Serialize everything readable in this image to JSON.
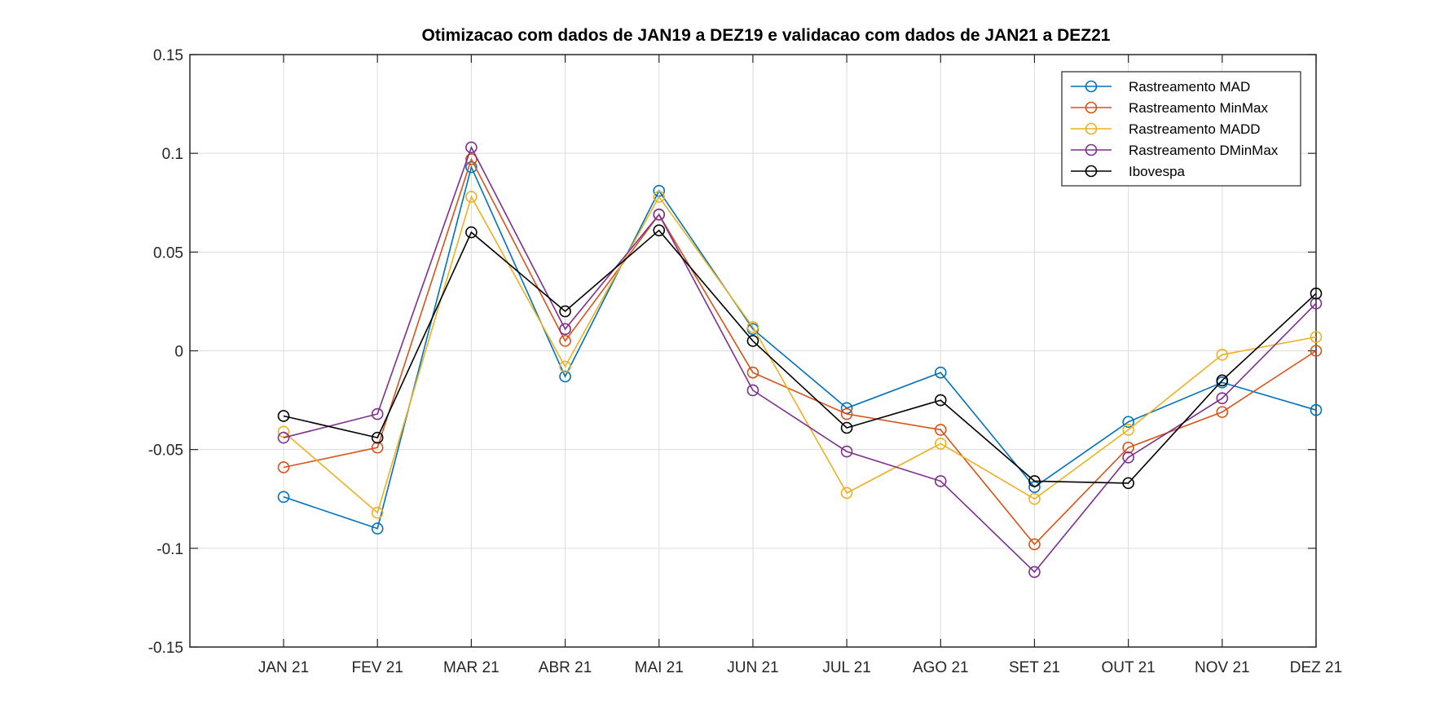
{
  "chart_data": {
    "type": "line",
    "title": "Otimizacao com dados de JAN19 a DEZ19 e validacao com dados de JAN21 a DEZ21",
    "xlabel": "",
    "ylabel": "",
    "categories": [
      "JAN 21",
      "FEV 21",
      "MAR 21",
      "ABR 21",
      "MAI 21",
      "JUN 21",
      "JUL 21",
      "AGO 21",
      "SET 21",
      "OUT 21",
      "NOV 21",
      "DEZ 21"
    ],
    "ylim": [
      -0.15,
      0.15
    ],
    "yticks": [
      "0.15",
      "0.1",
      "0.05",
      "0",
      "-0.05",
      "-0.1",
      "-0.15"
    ],
    "ytick_values": [
      0.15,
      0.1,
      0.05,
      0,
      -0.05,
      -0.1,
      -0.15
    ],
    "grid": true,
    "legend_position": "top-right",
    "marker": "open-circle",
    "series": [
      {
        "name": "Rastreamento MAD",
        "color": "#0072BD",
        "values": [
          -0.074,
          -0.09,
          0.093,
          -0.013,
          0.081,
          0.011,
          -0.029,
          -0.011,
          -0.069,
          -0.036,
          -0.016,
          -0.03
        ]
      },
      {
        "name": "Rastreamento MinMax",
        "color": "#D95319",
        "values": [
          -0.059,
          -0.049,
          0.097,
          0.005,
          0.069,
          -0.011,
          -0.032,
          -0.04,
          -0.098,
          -0.049,
          -0.031,
          0.0
        ]
      },
      {
        "name": "Rastreamento MADD",
        "color": "#EDB120",
        "values": [
          -0.041,
          -0.082,
          0.078,
          -0.008,
          0.078,
          0.012,
          -0.072,
          -0.047,
          -0.075,
          -0.04,
          -0.002,
          0.007
        ]
      },
      {
        "name": "Rastreamento DMinMax",
        "color": "#7E2F8E",
        "values": [
          -0.044,
          -0.032,
          0.103,
          0.011,
          0.069,
          -0.02,
          -0.051,
          -0.066,
          -0.112,
          -0.054,
          -0.024,
          0.024
        ]
      },
      {
        "name": "Ibovespa",
        "color": "#000000",
        "values": [
          -0.033,
          -0.044,
          0.06,
          0.02,
          0.061,
          0.005,
          -0.039,
          -0.025,
          -0.066,
          -0.067,
          -0.015,
          0.029
        ]
      }
    ]
  }
}
